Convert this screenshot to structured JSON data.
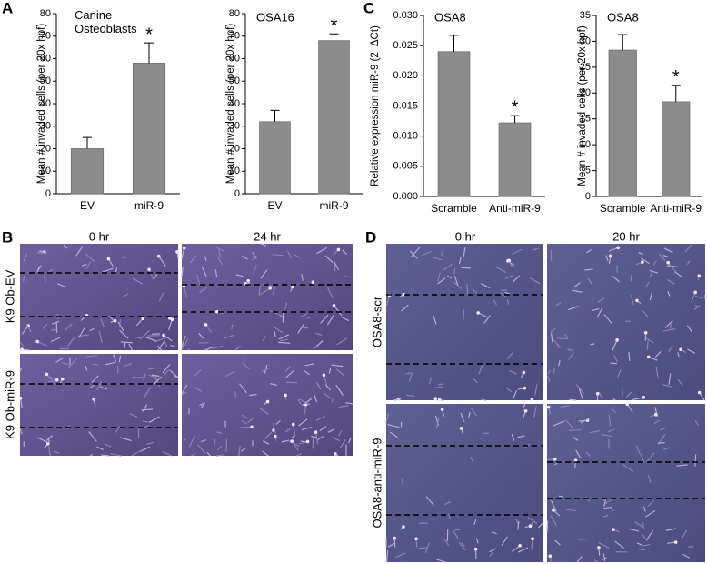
{
  "chart_data": [
    {
      "type": "bar",
      "title": "Canine Osteoblasts",
      "ylabel": "Mean # invaded cells (per 20x hpf)",
      "categories": [
        "EV",
        "miR-9"
      ],
      "values": [
        20,
        58
      ],
      "errors": [
        5,
        9
      ],
      "color": "#8c8c8c",
      "ylim": [
        0,
        80
      ],
      "yticks": [
        0,
        10,
        20,
        30,
        40,
        50,
        60,
        70,
        80
      ],
      "annotation": "*"
    },
    {
      "type": "bar",
      "title": "OSA16",
      "ylabel": "Mean # invaded cells (per 20x hpf)",
      "categories": [
        "EV",
        "miR-9"
      ],
      "values": [
        32,
        68
      ],
      "errors": [
        5,
        3
      ],
      "color": "#8c8c8c",
      "ylim": [
        0,
        80
      ],
      "yticks": [
        0,
        10,
        20,
        30,
        40,
        50,
        60,
        70,
        80
      ],
      "annotation": "*"
    },
    {
      "type": "bar",
      "title": "OSA8",
      "ylabel": "Relative expression miR-9 (2⁻ΔCt)",
      "categories": [
        "Scramble",
        "Anti-miR-9"
      ],
      "values": [
        0.024,
        0.0122
      ],
      "errors": [
        0.0027,
        0.0012
      ],
      "color": "#8c8c8c",
      "ylim": [
        0,
        0.03
      ],
      "yticks": [
        {
          "value": 0,
          "label": "0.000"
        },
        {
          "value": 0.005,
          "label": "0.005"
        },
        {
          "value": 0.01,
          "label": "0.010"
        },
        {
          "value": 0.015,
          "label": "0.015"
        },
        {
          "value": 0.02,
          "label": "0.020"
        },
        {
          "value": 0.025,
          "label": "0.025"
        },
        {
          "value": 0.03,
          "label": "0.030"
        }
      ],
      "annotation": "*"
    },
    {
      "type": "bar",
      "title": "OSA8",
      "ylabel": "Mean # invaded cells (per 20x hpf)",
      "categories": [
        "Scramble",
        "Anti-miR-9"
      ],
      "values": [
        28.3,
        18.3
      ],
      "errors": [
        3,
        3.2
      ],
      "color": "#8c8c8c",
      "ylim": [
        0,
        35
      ],
      "yticks": [
        0,
        5,
        10,
        15,
        20,
        25,
        30,
        35
      ],
      "annotation": "*"
    }
  ],
  "panel_labels": [
    "A",
    "B",
    "C",
    "D"
  ],
  "wound_healing": [
    {
      "columns": [
        "0 hr",
        "24 hr"
      ],
      "rows": [
        "K9 Ob-EV",
        "K9 Ob-miR-9"
      ]
    },
    {
      "columns": [
        "0 hr",
        "20 hr"
      ],
      "rows": [
        "OSA8-scr",
        "OSA8-anti-miR-9"
      ]
    }
  ]
}
